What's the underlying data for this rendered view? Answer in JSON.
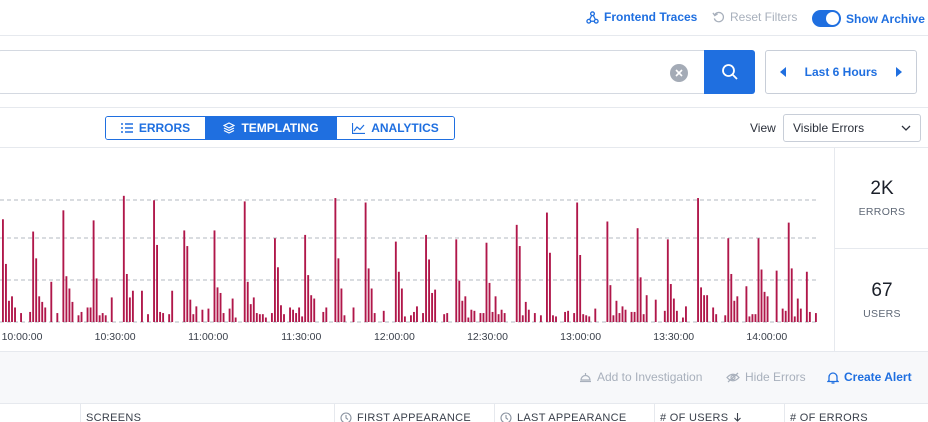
{
  "topbar": {
    "frontend_traces": "Frontend Traces",
    "reset_filters": "Reset Filters",
    "show_archive": "Show Archive",
    "show_archive_enabled": true
  },
  "search": {
    "value": "",
    "placeholder": "",
    "time_range": "Last 6 Hours"
  },
  "view_tabs": [
    {
      "label": "ERRORS",
      "icon": "list-icon",
      "active": false
    },
    {
      "label": "TEMPLATING",
      "icon": "layers-icon",
      "active": true
    },
    {
      "label": "ANALYTICS",
      "icon": "line-chart-icon",
      "active": false
    }
  ],
  "view": {
    "label": "View",
    "selected": "Visible Errors"
  },
  "stats": {
    "errors_value": "2K",
    "errors_label": "ERRORS",
    "users_value": "67",
    "users_label": "USERS"
  },
  "chart_data": {
    "type": "bar",
    "x_tick_labels": [
      "10:00:00",
      "10:30:00",
      "11:00:00",
      "11:30:00",
      "12:00:00",
      "12:30:00",
      "13:00:00",
      "13:30:00",
      "14:00:00"
    ],
    "grid": true,
    "bar_color": "#b0174a",
    "bar_count": 270,
    "max_value": 120,
    "values": []
  },
  "actions": {
    "add_to_investigation": "Add to Investigation",
    "hide_errors": "Hide Errors",
    "create_alert": "Create Alert"
  },
  "table": {
    "columns": [
      "SCREENS",
      "FIRST APPEARANCE",
      "LAST APPEARANCE",
      "# OF USERS",
      "# OF ERRORS"
    ]
  },
  "colors": {
    "accent": "#1f6fe0",
    "bar": "#b0174a",
    "muted": "#a8b0bc"
  }
}
